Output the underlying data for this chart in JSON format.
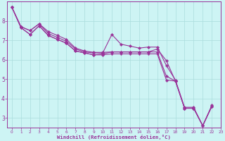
{
  "xlabel": "Windchill (Refroidissement éolien,°C)",
  "xlim": [
    -0.5,
    23
  ],
  "ylim": [
    2.5,
    9.0
  ],
  "yticks": [
    3,
    4,
    5,
    6,
    7,
    8
  ],
  "xtick_labels": [
    "0",
    "1",
    "2",
    "3",
    "4",
    "5",
    "6",
    "7",
    "8",
    "9",
    "10",
    "11",
    "12",
    "13",
    "14",
    "15",
    "16",
    "17",
    "18",
    "19",
    "20",
    "21",
    "22",
    "23"
  ],
  "xtick_positions": [
    0,
    1,
    2,
    3,
    4,
    5,
    6,
    7,
    8,
    9,
    10,
    11,
    12,
    13,
    14,
    15,
    16,
    17,
    18,
    19,
    20,
    21,
    22,
    23
  ],
  "bg_color": "#cdf4f4",
  "grid_color": "#aadddd",
  "line_color": "#993399",
  "series": [
    [
      8.7,
      7.7,
      7.5,
      7.85,
      7.35,
      7.15,
      6.95,
      6.55,
      6.4,
      6.35,
      6.35,
      7.3,
      6.8,
      6.7,
      6.6,
      6.65,
      6.65,
      5.7,
      4.95,
      3.55,
      3.55,
      2.6,
      3.65
    ],
    [
      8.7,
      7.65,
      7.3,
      7.75,
      7.25,
      7.05,
      6.85,
      6.45,
      6.35,
      6.25,
      6.3,
      6.4,
      6.4,
      6.4,
      6.4,
      6.4,
      6.4,
      5.15,
      4.9,
      3.5,
      3.5,
      2.6,
      3.6
    ],
    [
      8.7,
      7.7,
      7.5,
      7.85,
      7.45,
      7.25,
      7.05,
      6.6,
      6.45,
      6.38,
      6.38,
      6.4,
      6.4,
      6.4,
      6.4,
      6.4,
      6.55,
      5.95,
      4.9,
      3.5,
      3.5,
      2.6,
      3.6
    ],
    [
      8.7,
      7.65,
      7.3,
      7.75,
      7.25,
      7.05,
      6.85,
      6.45,
      6.35,
      6.25,
      6.25,
      6.3,
      6.3,
      6.3,
      6.3,
      6.3,
      6.3,
      4.95,
      4.9,
      3.5,
      3.5,
      2.6,
      3.6
    ]
  ],
  "marker": "D",
  "marker_size": 2.2,
  "line_width": 0.8,
  "figsize": [
    3.2,
    2.0
  ],
  "dpi": 100
}
